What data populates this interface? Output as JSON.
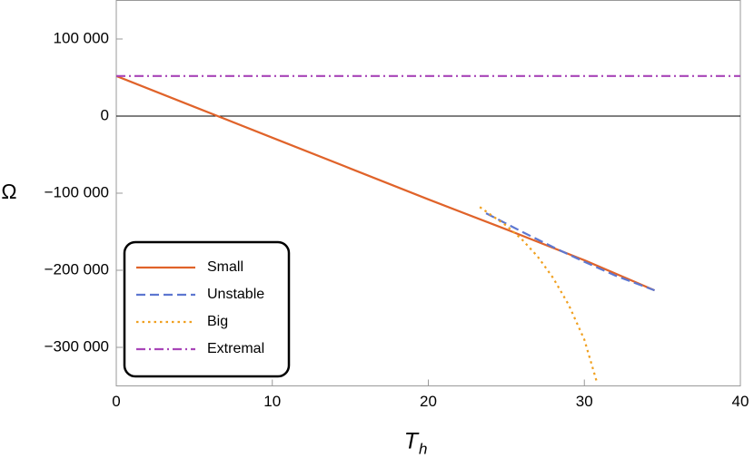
{
  "chart_data": {
    "type": "line",
    "xlabel": "T",
    "xlabel_sub": "h",
    "ylabel": "Ω",
    "xlim": [
      0,
      40
    ],
    "ylim": [
      -350000,
      150000
    ],
    "xticks": [
      0,
      10,
      20,
      30,
      40
    ],
    "yticks": [
      {
        "value": -300000,
        "label": "−300 000"
      },
      {
        "value": -200000,
        "label": "−200 000"
      },
      {
        "value": -100000,
        "label": "−100 000"
      },
      0,
      {
        "value": 100000,
        "label": "100 000"
      }
    ],
    "zero_line": true,
    "legend_position": "lower-left",
    "series": [
      {
        "name": "Small",
        "color": "#e0632a",
        "dash": "solid",
        "x": [
          0,
          5,
          10,
          15,
          20,
          25,
          30,
          34.5
        ],
        "values": [
          52000,
          12000,
          -28000,
          -68000,
          -108000,
          -147000,
          -187000,
          -226000
        ]
      },
      {
        "name": "Unstable",
        "color": "#5d77d0",
        "dash": "dashed",
        "x": [
          23.7,
          26,
          28,
          30,
          32,
          34.5
        ],
        "values": [
          -126000,
          -150000,
          -170000,
          -189000,
          -207000,
          -226000
        ]
      },
      {
        "name": "Big",
        "color": "#f0a020",
        "dash": "dotted",
        "x": [
          23.3,
          24,
          25,
          26,
          27,
          28,
          29,
          30,
          30.8
        ],
        "values": [
          -118000,
          -128000,
          -142000,
          -160000,
          -182000,
          -210000,
          -245000,
          -290000,
          -345000
        ]
      },
      {
        "name": "Extremal",
        "color": "#a845b8",
        "dash": "dashdot",
        "x": [
          0,
          40
        ],
        "values": [
          52000,
          52000
        ]
      }
    ]
  }
}
